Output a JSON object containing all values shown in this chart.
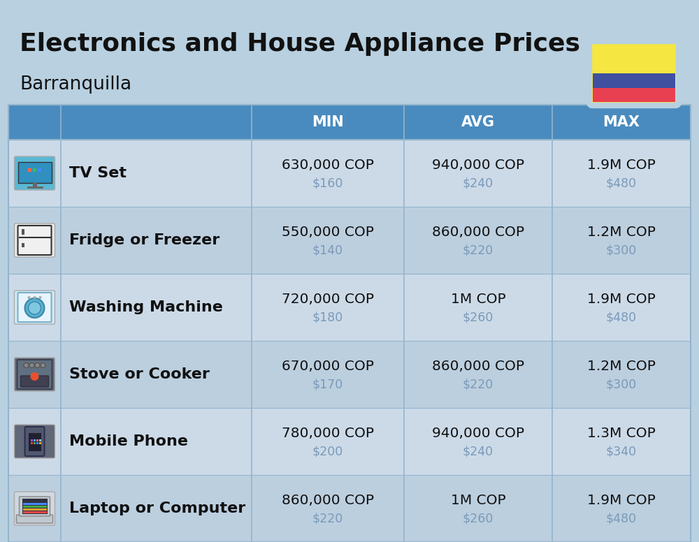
{
  "title": "Electronics and House Appliance Prices",
  "subtitle": "Barranquilla",
  "background_color": "#b8d0e0",
  "header_color": "#4a8bbf",
  "header_text_color": "#ffffff",
  "row_colors": [
    "#ccdae8",
    "#bccfdf"
  ],
  "col_divider_color": "#93b5cc",
  "text_color_main": "#111111",
  "text_color_sub": "#7a9ab8",
  "columns": [
    "MIN",
    "AVG",
    "MAX"
  ],
  "rows": [
    {
      "name": "TV Set",
      "min_cop": "630,000 COP",
      "min_usd": "$160",
      "avg_cop": "940,000 COP",
      "avg_usd": "$240",
      "max_cop": "1.9M COP",
      "max_usd": "$480"
    },
    {
      "name": "Fridge or Freezer",
      "min_cop": "550,000 COP",
      "min_usd": "$140",
      "avg_cop": "860,000 COP",
      "avg_usd": "$220",
      "max_cop": "1.2M COP",
      "max_usd": "$300"
    },
    {
      "name": "Washing Machine",
      "min_cop": "720,000 COP",
      "min_usd": "$180",
      "avg_cop": "1M COP",
      "avg_usd": "$260",
      "max_cop": "1.9M COP",
      "max_usd": "$480"
    },
    {
      "name": "Stove or Cooker",
      "min_cop": "670,000 COP",
      "min_usd": "$170",
      "avg_cop": "860,000 COP",
      "avg_usd": "$220",
      "max_cop": "1.2M COP",
      "max_usd": "$300"
    },
    {
      "name": "Mobile Phone",
      "min_cop": "780,000 COP",
      "min_usd": "$200",
      "avg_cop": "940,000 COP",
      "avg_usd": "$240",
      "max_cop": "1.3M COP",
      "max_usd": "$340"
    },
    {
      "name": "Laptop or Computer",
      "min_cop": "860,000 COP",
      "min_usd": "$220",
      "avg_cop": "1M COP",
      "avg_usd": "$260",
      "max_cop": "1.9M COP",
      "max_usd": "$480"
    }
  ],
  "flag_yellow": "#f5e642",
  "flag_blue": "#4050a0",
  "flag_red": "#e84050",
  "icon_colors": [
    {
      "bg": "#5bb8d4",
      "accent": "#e8903c"
    },
    {
      "bg": "#e8e8e8",
      "accent": "#333333"
    },
    {
      "bg": "#d0eaf5",
      "accent": "#5aa8c8"
    },
    {
      "bg": "#607080",
      "accent": "#e85030"
    },
    {
      "bg": "#606878",
      "accent": "#e8a030"
    },
    {
      "bg": "#d0d8e0",
      "accent": "#d04848"
    }
  ]
}
